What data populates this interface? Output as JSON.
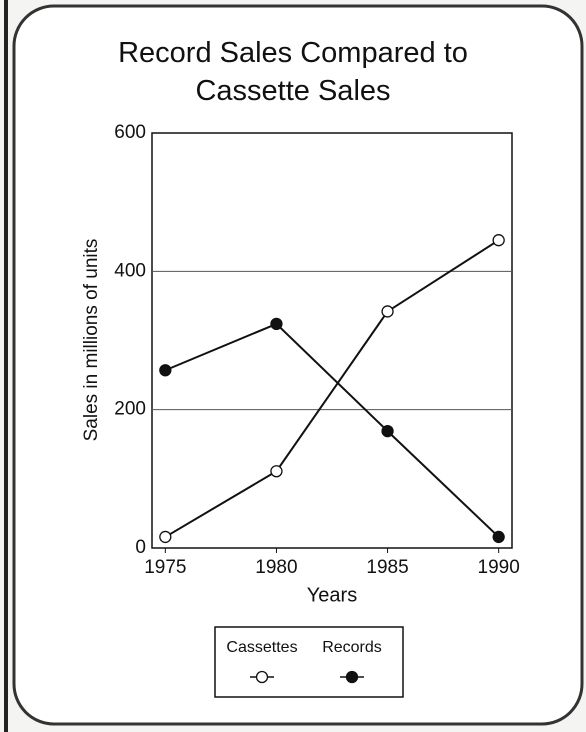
{
  "chart_data": {
    "type": "line",
    "title": "Record Sales Compared to Cassette Sales",
    "x_label": "Years",
    "y_label": "Sales in millions of units",
    "x": [
      1975,
      1980,
      1985,
      1990
    ],
    "xlim": [
      1974.4,
      1990.6
    ],
    "xticks": [
      1975,
      1980,
      1985,
      1990
    ],
    "ylim": [
      0,
      600
    ],
    "yticks": [
      0,
      200,
      400,
      600
    ],
    "grid": true,
    "legend": "bottom",
    "series": [
      {
        "name": "Cassettes",
        "color": "#111111",
        "marker": "open",
        "values": [
          16,
          111,
          342,
          445
        ]
      },
      {
        "name": "Records",
        "color": "#111111",
        "marker": "filled",
        "values": [
          257,
          324,
          169,
          16
        ]
      }
    ]
  }
}
